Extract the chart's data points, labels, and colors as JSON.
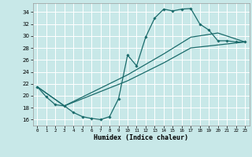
{
  "xlabel": "Humidex (Indice chaleur)",
  "xlim": [
    -0.5,
    23.5
  ],
  "ylim": [
    15.0,
    35.5
  ],
  "xticks": [
    0,
    1,
    2,
    3,
    4,
    5,
    6,
    7,
    8,
    9,
    10,
    11,
    12,
    13,
    14,
    15,
    16,
    17,
    18,
    19,
    20,
    21,
    22,
    23
  ],
  "yticks": [
    16,
    18,
    20,
    22,
    24,
    26,
    28,
    30,
    32,
    34
  ],
  "bg_color": "#c8e8e8",
  "grid_color": "#ffffff",
  "line_color": "#1a6b6b",
  "curve1_x": [
    0,
    1,
    2,
    3,
    4,
    5,
    6,
    7,
    8,
    9,
    10,
    11,
    12,
    13,
    14,
    15,
    16,
    17,
    18,
    19,
    20,
    21,
    22,
    23
  ],
  "curve1_y": [
    21.5,
    19.8,
    18.5,
    18.3,
    17.2,
    16.5,
    16.2,
    16.0,
    16.5,
    19.5,
    26.8,
    25.0,
    29.8,
    33.0,
    34.5,
    34.2,
    34.5,
    34.6,
    32.0,
    31.0,
    29.2,
    29.2,
    29.0,
    29.0
  ],
  "curve2_x": [
    0,
    3,
    10,
    14,
    17,
    20,
    23
  ],
  "curve2_y": [
    21.5,
    18.3,
    22.5,
    25.5,
    28.0,
    28.5,
    29.0
  ],
  "curve3_x": [
    0,
    3,
    10,
    14,
    17,
    20,
    23
  ],
  "curve3_y": [
    21.5,
    18.3,
    23.5,
    27.0,
    29.8,
    30.5,
    29.0
  ]
}
